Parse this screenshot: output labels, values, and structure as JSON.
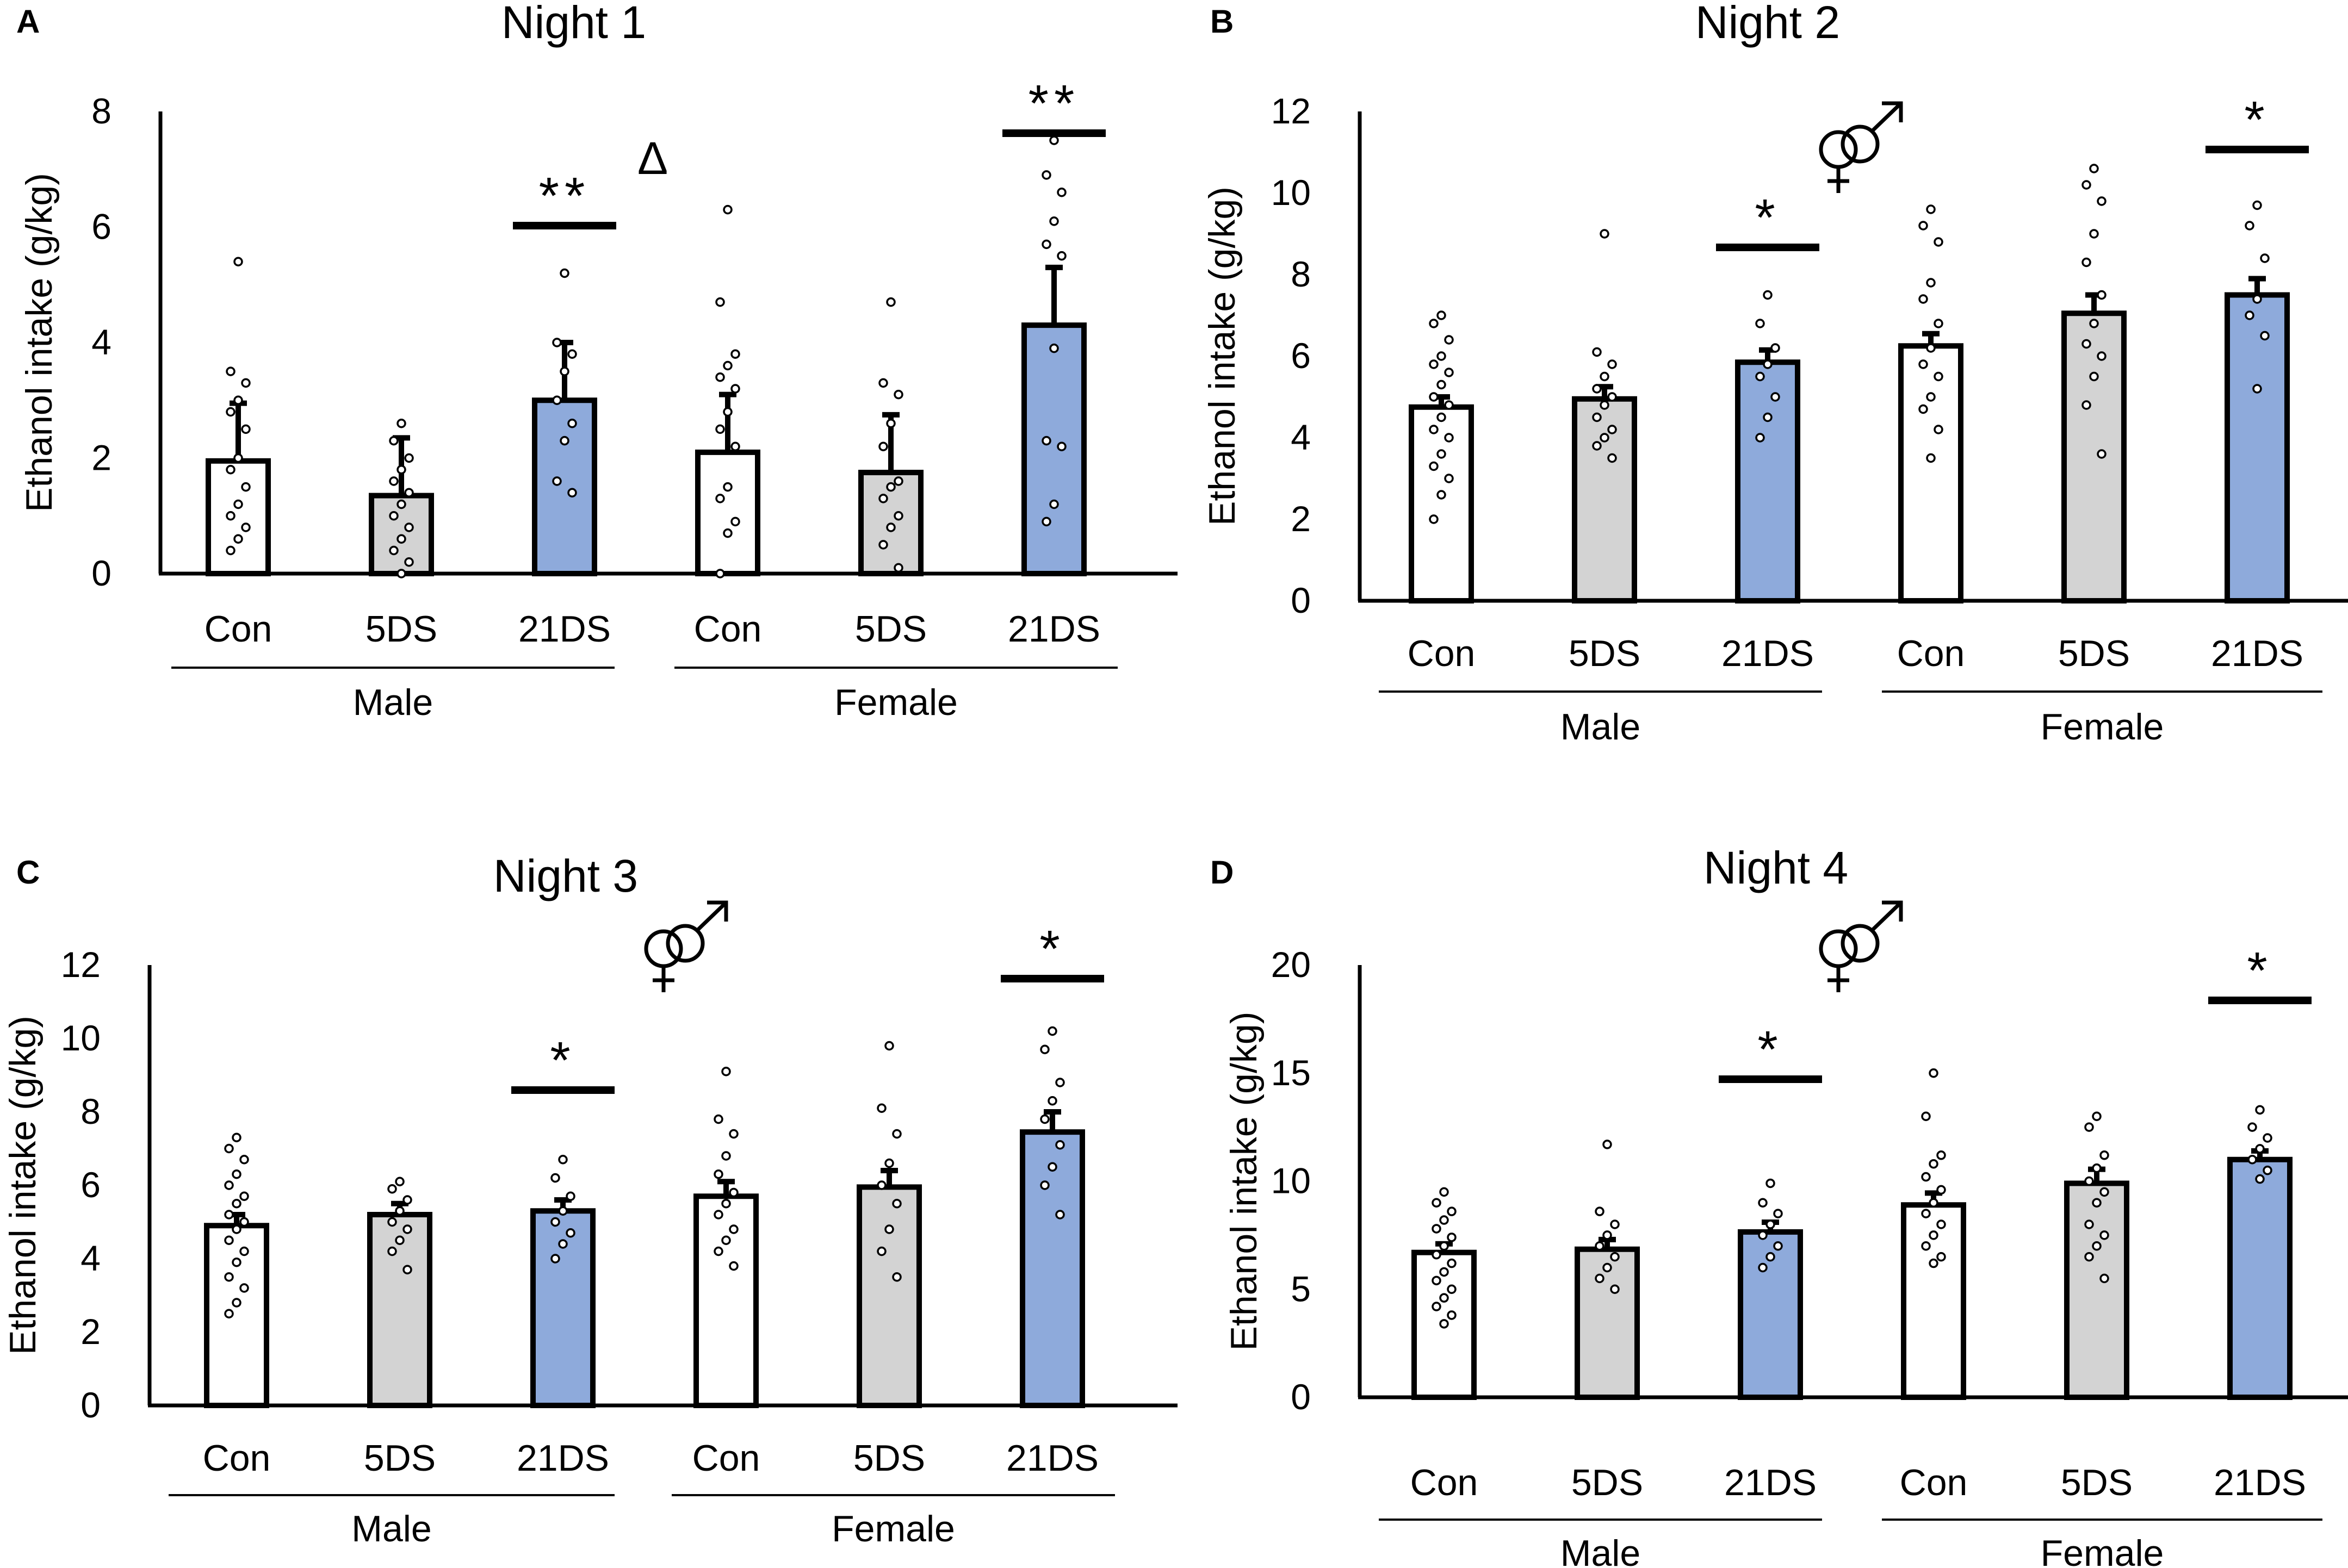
{
  "colors": {
    "Con": "#ffffff",
    "5DS": "#d3d3d3",
    "21DS": "#8eaadb",
    "stroke": "#000000"
  },
  "chart_data": [
    {
      "panel": "A",
      "title": "Night 1",
      "type": "bar",
      "ylabel": "Ethanol intake (g/kg)",
      "ylim": [
        0,
        8
      ],
      "yticks": [
        "0",
        "2",
        "4",
        "6",
        "8"
      ],
      "categories": [
        "Con",
        "5DS",
        "21DS",
        "Con",
        "5DS",
        "21DS"
      ],
      "groups": [
        "Male",
        "Female"
      ],
      "values": [
        1.95,
        1.35,
        3.0,
        2.1,
        1.75,
        4.3
      ],
      "errors": [
        1.0,
        1.0,
        1.0,
        1.0,
        1.0,
        1.0
      ],
      "points": [
        [
          5.4,
          3.5,
          3.3,
          3.0,
          2.8,
          2.5,
          2.0,
          1.8,
          1.5,
          1.2,
          1.0,
          0.8,
          0.6,
          0.4
        ],
        [
          2.6,
          2.3,
          2.0,
          1.8,
          1.6,
          1.4,
          1.2,
          1.0,
          0.8,
          0.6,
          0.4,
          0.2,
          0.0
        ],
        [
          5.2,
          4.0,
          3.8,
          3.5,
          3.0,
          2.6,
          2.3,
          1.6,
          1.4
        ],
        [
          6.3,
          4.7,
          3.8,
          3.6,
          3.4,
          3.2,
          2.8,
          2.5,
          2.2,
          1.5,
          1.3,
          0.9,
          0.7,
          0.0
        ],
        [
          4.7,
          3.3,
          3.1,
          2.6,
          2.2,
          1.6,
          1.5,
          1.3,
          1.0,
          0.8,
          0.5,
          0.1
        ],
        [
          7.5,
          6.9,
          6.6,
          6.1,
          5.7,
          5.5,
          3.9,
          2.3,
          2.2,
          1.2,
          0.9
        ]
      ],
      "significance": [
        {
          "bar": 2,
          "label": "**"
        },
        {
          "bar": 5,
          "label": "**"
        }
      ],
      "annotations": [
        {
          "label": "Δ",
          "after_bar": 2
        }
      ]
    },
    {
      "panel": "B",
      "title": "Night 2",
      "type": "bar",
      "ylabel": "Ethanol intake (g/kg)",
      "ylim": [
        0,
        12
      ],
      "yticks": [
        "0",
        "2",
        "4",
        "6",
        "8",
        "10",
        "12"
      ],
      "categories": [
        "Con",
        "5DS",
        "21DS",
        "Con",
        "5DS",
        "21DS"
      ],
      "groups": [
        "Male",
        "Female"
      ],
      "values": [
        4.75,
        4.95,
        5.85,
        6.25,
        7.05,
        7.5
      ],
      "errors": [
        0.25,
        0.3,
        0.3,
        0.3,
        0.45,
        0.4
      ],
      "points": [
        [
          7.0,
          6.8,
          6.4,
          6.0,
          5.8,
          5.6,
          5.3,
          5.0,
          4.8,
          4.5,
          4.2,
          4.0,
          3.6,
          3.3,
          3.0,
          2.6,
          2.0
        ],
        [
          9.0,
          6.1,
          5.8,
          5.5,
          5.2,
          5.0,
          4.8,
          4.5,
          4.2,
          4.0,
          3.8,
          3.5
        ],
        [
          7.5,
          6.8,
          6.2,
          5.8,
          5.5,
          5.0,
          4.5,
          4.0
        ],
        [
          9.6,
          9.2,
          8.8,
          7.8,
          7.4,
          6.8,
          6.2,
          5.8,
          5.5,
          5.0,
          4.7,
          4.2,
          3.5
        ],
        [
          10.6,
          10.2,
          9.8,
          9.0,
          8.3,
          7.5,
          6.8,
          6.3,
          6.0,
          5.5,
          4.8,
          3.6
        ],
        [
          9.7,
          9.2,
          8.4,
          7.4,
          7.0,
          6.5,
          5.2
        ]
      ],
      "significance": [
        {
          "bar": 2,
          "label": "*"
        },
        {
          "bar": 5,
          "label": "*"
        }
      ],
      "annotations": [
        {
          "label": "sex-symbol",
          "after_bar": 2
        }
      ]
    },
    {
      "panel": "C",
      "title": "Night 3",
      "type": "bar",
      "ylabel": "Ethanol intake (g/kg)",
      "ylim": [
        0,
        12
      ],
      "yticks": [
        "0",
        "2",
        "4",
        "6",
        "8",
        "10",
        "12"
      ],
      "categories": [
        "Con",
        "5DS",
        "21DS",
        "Con",
        "5DS",
        "21DS"
      ],
      "groups": [
        "Male",
        "Female"
      ],
      "values": [
        4.9,
        5.2,
        5.3,
        5.7,
        5.95,
        7.45
      ],
      "errors": [
        0.3,
        0.3,
        0.3,
        0.4,
        0.45,
        0.55
      ],
      "points": [
        [
          7.3,
          7.0,
          6.7,
          6.3,
          6.0,
          5.7,
          5.5,
          5.2,
          5.0,
          4.8,
          4.5,
          4.2,
          3.9,
          3.5,
          3.2,
          2.8,
          2.5
        ],
        [
          6.1,
          5.9,
          5.6,
          5.3,
          5.0,
          4.8,
          4.5,
          4.2,
          3.7
        ],
        [
          6.7,
          6.2,
          5.7,
          5.3,
          5.0,
          4.7,
          4.4,
          4.0
        ],
        [
          9.1,
          7.8,
          7.4,
          6.8,
          6.3,
          5.8,
          5.5,
          5.2,
          4.8,
          4.5,
          4.2,
          3.8
        ],
        [
          9.8,
          8.1,
          7.4,
          6.6,
          6.0,
          5.5,
          4.8,
          4.2,
          3.5
        ],
        [
          10.2,
          9.7,
          8.8,
          8.3,
          7.8,
          7.1,
          6.5,
          6.0,
          5.2
        ]
      ],
      "significance": [
        {
          "bar": 2,
          "label": "*"
        },
        {
          "bar": 5,
          "label": "*"
        }
      ],
      "annotations": [
        {
          "label": "sex-symbol",
          "after_bar": 2
        }
      ]
    },
    {
      "panel": "D",
      "title": "Night 4",
      "type": "bar",
      "ylabel": "Ethanol intake (g/kg)",
      "ylim": [
        0,
        20
      ],
      "yticks": [
        "0",
        "5",
        "10",
        "15",
        "20"
      ],
      "categories": [
        "Con",
        "5DS",
        "21DS",
        "Con",
        "5DS",
        "21DS"
      ],
      "groups": [
        "Male",
        "Female"
      ],
      "values": [
        6.7,
        6.85,
        7.65,
        8.9,
        9.9,
        11.0
      ],
      "errors": [
        0.4,
        0.45,
        0.45,
        0.55,
        0.65,
        0.4
      ],
      "points": [
        [
          9.5,
          9.0,
          8.6,
          8.2,
          7.8,
          7.4,
          7.0,
          6.6,
          6.2,
          5.8,
          5.4,
          5.0,
          4.6,
          4.2,
          3.8,
          3.4
        ],
        [
          11.7,
          8.6,
          8.0,
          7.5,
          7.0,
          6.5,
          6.0,
          5.5,
          5.0
        ],
        [
          9.9,
          9.0,
          8.5,
          8.0,
          7.5,
          7.0,
          6.5,
          6.0
        ],
        [
          15.0,
          13.0,
          11.2,
          10.8,
          10.2,
          9.6,
          9.0,
          8.5,
          8.0,
          7.5,
          7.0,
          6.5,
          6.2
        ],
        [
          13.0,
          12.5,
          11.2,
          10.6,
          10.0,
          9.5,
          9.0,
          8.0,
          7.5,
          7.0,
          6.5,
          5.5
        ],
        [
          13.3,
          12.5,
          12.0,
          11.5,
          11.0,
          10.5,
          10.1
        ]
      ],
      "significance": [
        {
          "bar": 2,
          "label": "*"
        },
        {
          "bar": 5,
          "label": "*"
        }
      ],
      "annotations": [
        {
          "label": "sex-symbol",
          "after_bar": 2
        }
      ]
    }
  ]
}
